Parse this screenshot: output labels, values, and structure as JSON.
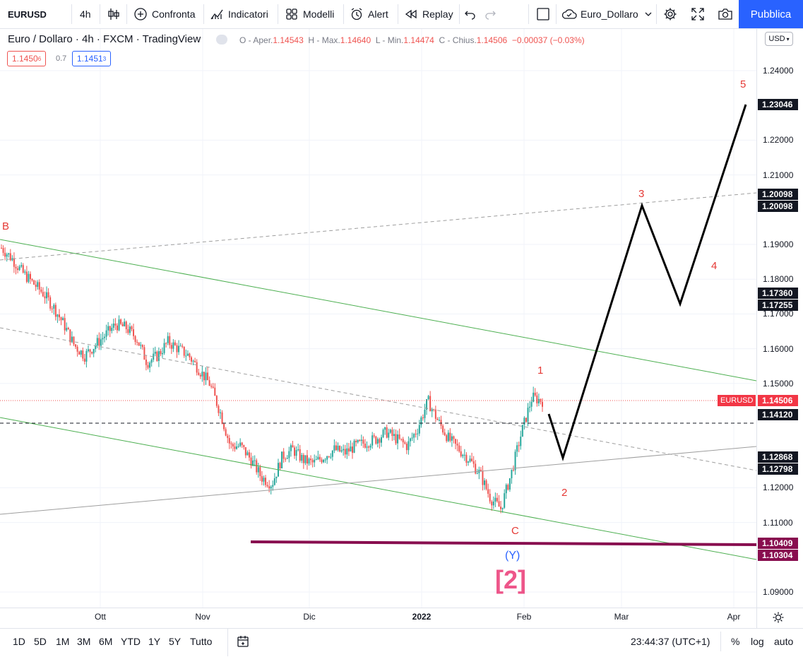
{
  "toolbar": {
    "symbol": "EURUSD",
    "interval": "4h",
    "compare_label": "Confronta",
    "indicators_label": "Indicatori",
    "templates_label": "Modelli",
    "alert_label": "Alert",
    "replay_label": "Replay",
    "layout_name": "Euro_Dollaro",
    "publish_label": "Pubblica"
  },
  "legend": {
    "title": "Euro / Dollaro · 4h · FXCM · TradingView",
    "open_label": "O - Aper.",
    "open": "1.14543",
    "high_label": "H - Max.",
    "high": "1.14640",
    "low_label": "L - Min.",
    "low": "1.14474",
    "close_label": "C - Chius.",
    "close": "1.14506",
    "change": "−0.00037 (−0.03%)",
    "bid_main": "1.1450",
    "bid_sup": "6",
    "spread": "0.7",
    "ask_main": "1.1451",
    "ask_sup": "3"
  },
  "currency_button": "USD",
  "y_axis_ticks": [
    "1.24000",
    "1.22000",
    "1.21000",
    "1.19000",
    "1.18000",
    "1.17000",
    "1.16000",
    "1.15000",
    "1.12000",
    "1.11000",
    "1.09000"
  ],
  "x_axis_ticks": [
    "Ott",
    "Nov",
    "Dic",
    "2022",
    "Feb",
    "Mar",
    "Apr"
  ],
  "price_labels": [
    "1.23046",
    "1.20098",
    "1.20098",
    "1.17360",
    "1.17255",
    "1.14506",
    "1.14120",
    "1.12868",
    "1.12798",
    "1.10409",
    "1.10304"
  ],
  "symbol_label": "EURUSD",
  "annotations": {
    "B": "B",
    "C": "C",
    "Y": "(Y)",
    "big2": "[2]",
    "w1": "1",
    "w2": "2",
    "w3": "3",
    "w4": "4",
    "w5": "5"
  },
  "bottom_bar": {
    "ranges": [
      "1D",
      "5D",
      "1M",
      "3M",
      "6M",
      "YTD",
      "1Y",
      "5Y",
      "Tutto"
    ],
    "time": "23:44:37 (UTC+1)",
    "percent": "%",
    "log": "log",
    "auto": "auto"
  },
  "colors": {
    "up": "#26a69a",
    "down": "#ef5350",
    "accent": "#2962ff",
    "channel": "#4caf50",
    "support_line": "#880e4f",
    "wave_label": "#e53935",
    "big_label": "#e91e63"
  },
  "chart_data": {
    "type": "candlestick",
    "symbol": "EURUSD",
    "interval": "4h",
    "x": [
      "Ott",
      "Nov",
      "Dic",
      "2022",
      "Feb",
      "Mar",
      "Apr"
    ],
    "close_path": [
      1.189,
      1.186,
      1.182,
      1.179,
      1.176,
      1.172,
      1.167,
      1.161,
      1.158,
      1.161,
      1.164,
      1.167,
      1.166,
      1.163,
      1.156,
      1.158,
      1.162,
      1.16,
      1.158,
      1.154,
      1.15,
      1.142,
      1.132,
      1.132,
      1.128,
      1.123,
      1.121,
      1.129,
      1.131,
      1.128,
      1.127,
      1.129,
      1.131,
      1.13,
      1.132,
      1.133,
      1.134,
      1.136,
      1.134,
      1.132,
      1.137,
      1.145,
      1.139,
      1.134,
      1.131,
      1.128,
      1.124,
      1.117,
      1.114,
      1.124,
      1.136,
      1.146,
      1.145
    ],
    "ylim": [
      1.085,
      1.245
    ],
    "projection": [
      1.1412,
      1.1287,
      1.201,
      1.1726,
      1.2305
    ]
  }
}
